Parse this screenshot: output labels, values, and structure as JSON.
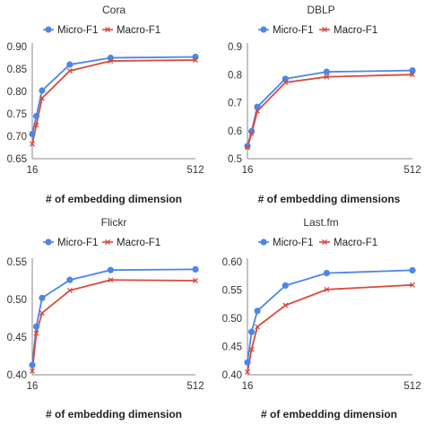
{
  "colors": {
    "micro": "#4c86e8",
    "macro": "#d84a3c",
    "axis": "#888888"
  },
  "chart_data": [
    {
      "type": "line",
      "title": "Cora",
      "xlabel": "# of embedding dimension",
      "ylabel": "",
      "x": [
        16,
        32,
        64,
        128,
        256,
        512
      ],
      "x_tick_labels": [
        "16",
        "512"
      ],
      "ylim": [
        0.65,
        0.9
      ],
      "y_ticks": [
        "0.65",
        "0.70",
        "0.75",
        "0.80",
        "0.85",
        "0.90"
      ],
      "series": [
        {
          "name": "Micro-F1",
          "values": [
            0.705,
            0.745,
            0.802,
            0.86,
            0.875,
            0.877
          ]
        },
        {
          "name": "Macro-F1",
          "values": [
            0.683,
            0.725,
            0.785,
            0.846,
            0.868,
            0.87
          ]
        }
      ]
    },
    {
      "type": "line",
      "title": "DBLP",
      "xlabel": "# of embedding dimensions",
      "ylabel": "",
      "x": [
        16,
        32,
        64,
        128,
        256,
        512
      ],
      "x_tick_labels": [
        "16",
        "512"
      ],
      "ylim": [
        0.5,
        0.9
      ],
      "y_ticks": [
        "0.5",
        "0.6",
        "0.7",
        "0.8",
        "0.9"
      ],
      "series": [
        {
          "name": "Micro-F1",
          "values": [
            0.545,
            0.598,
            0.685,
            0.785,
            0.81,
            0.815
          ]
        },
        {
          "name": "Macro-F1",
          "values": [
            0.54,
            0.59,
            0.67,
            0.772,
            0.792,
            0.8
          ]
        }
      ]
    },
    {
      "type": "line",
      "title": "Flickr",
      "xlabel": "# of embedding dimension",
      "ylabel": "",
      "x": [
        16,
        32,
        64,
        128,
        256,
        512
      ],
      "x_tick_labels": [
        "16",
        "512"
      ],
      "ylim": [
        0.4,
        0.55
      ],
      "y_ticks": [
        "0.40",
        "0.45",
        "0.50",
        "0.55"
      ],
      "series": [
        {
          "name": "Micro-F1",
          "values": [
            0.413,
            0.464,
            0.502,
            0.526,
            0.539,
            0.54
          ]
        },
        {
          "name": "Macro-F1",
          "values": [
            0.405,
            0.455,
            0.482,
            0.512,
            0.526,
            0.525
          ]
        }
      ]
    },
    {
      "type": "line",
      "title": "Last.fm",
      "xlabel": "# of embedding dimension",
      "ylabel": "",
      "x": [
        16,
        32,
        64,
        128,
        256,
        512
      ],
      "x_tick_labels": [
        "16",
        "512"
      ],
      "ylim": [
        0.4,
        0.6
      ],
      "y_ticks": [
        "0.40",
        "0.45",
        "0.50",
        "0.55",
        "0.60"
      ],
      "series": [
        {
          "name": "Micro-F1",
          "values": [
            0.422,
            0.476,
            0.513,
            0.558,
            0.58,
            0.585
          ]
        },
        {
          "name": "Macro-F1",
          "values": [
            0.405,
            0.445,
            0.485,
            0.523,
            0.551,
            0.559
          ]
        }
      ]
    }
  ]
}
